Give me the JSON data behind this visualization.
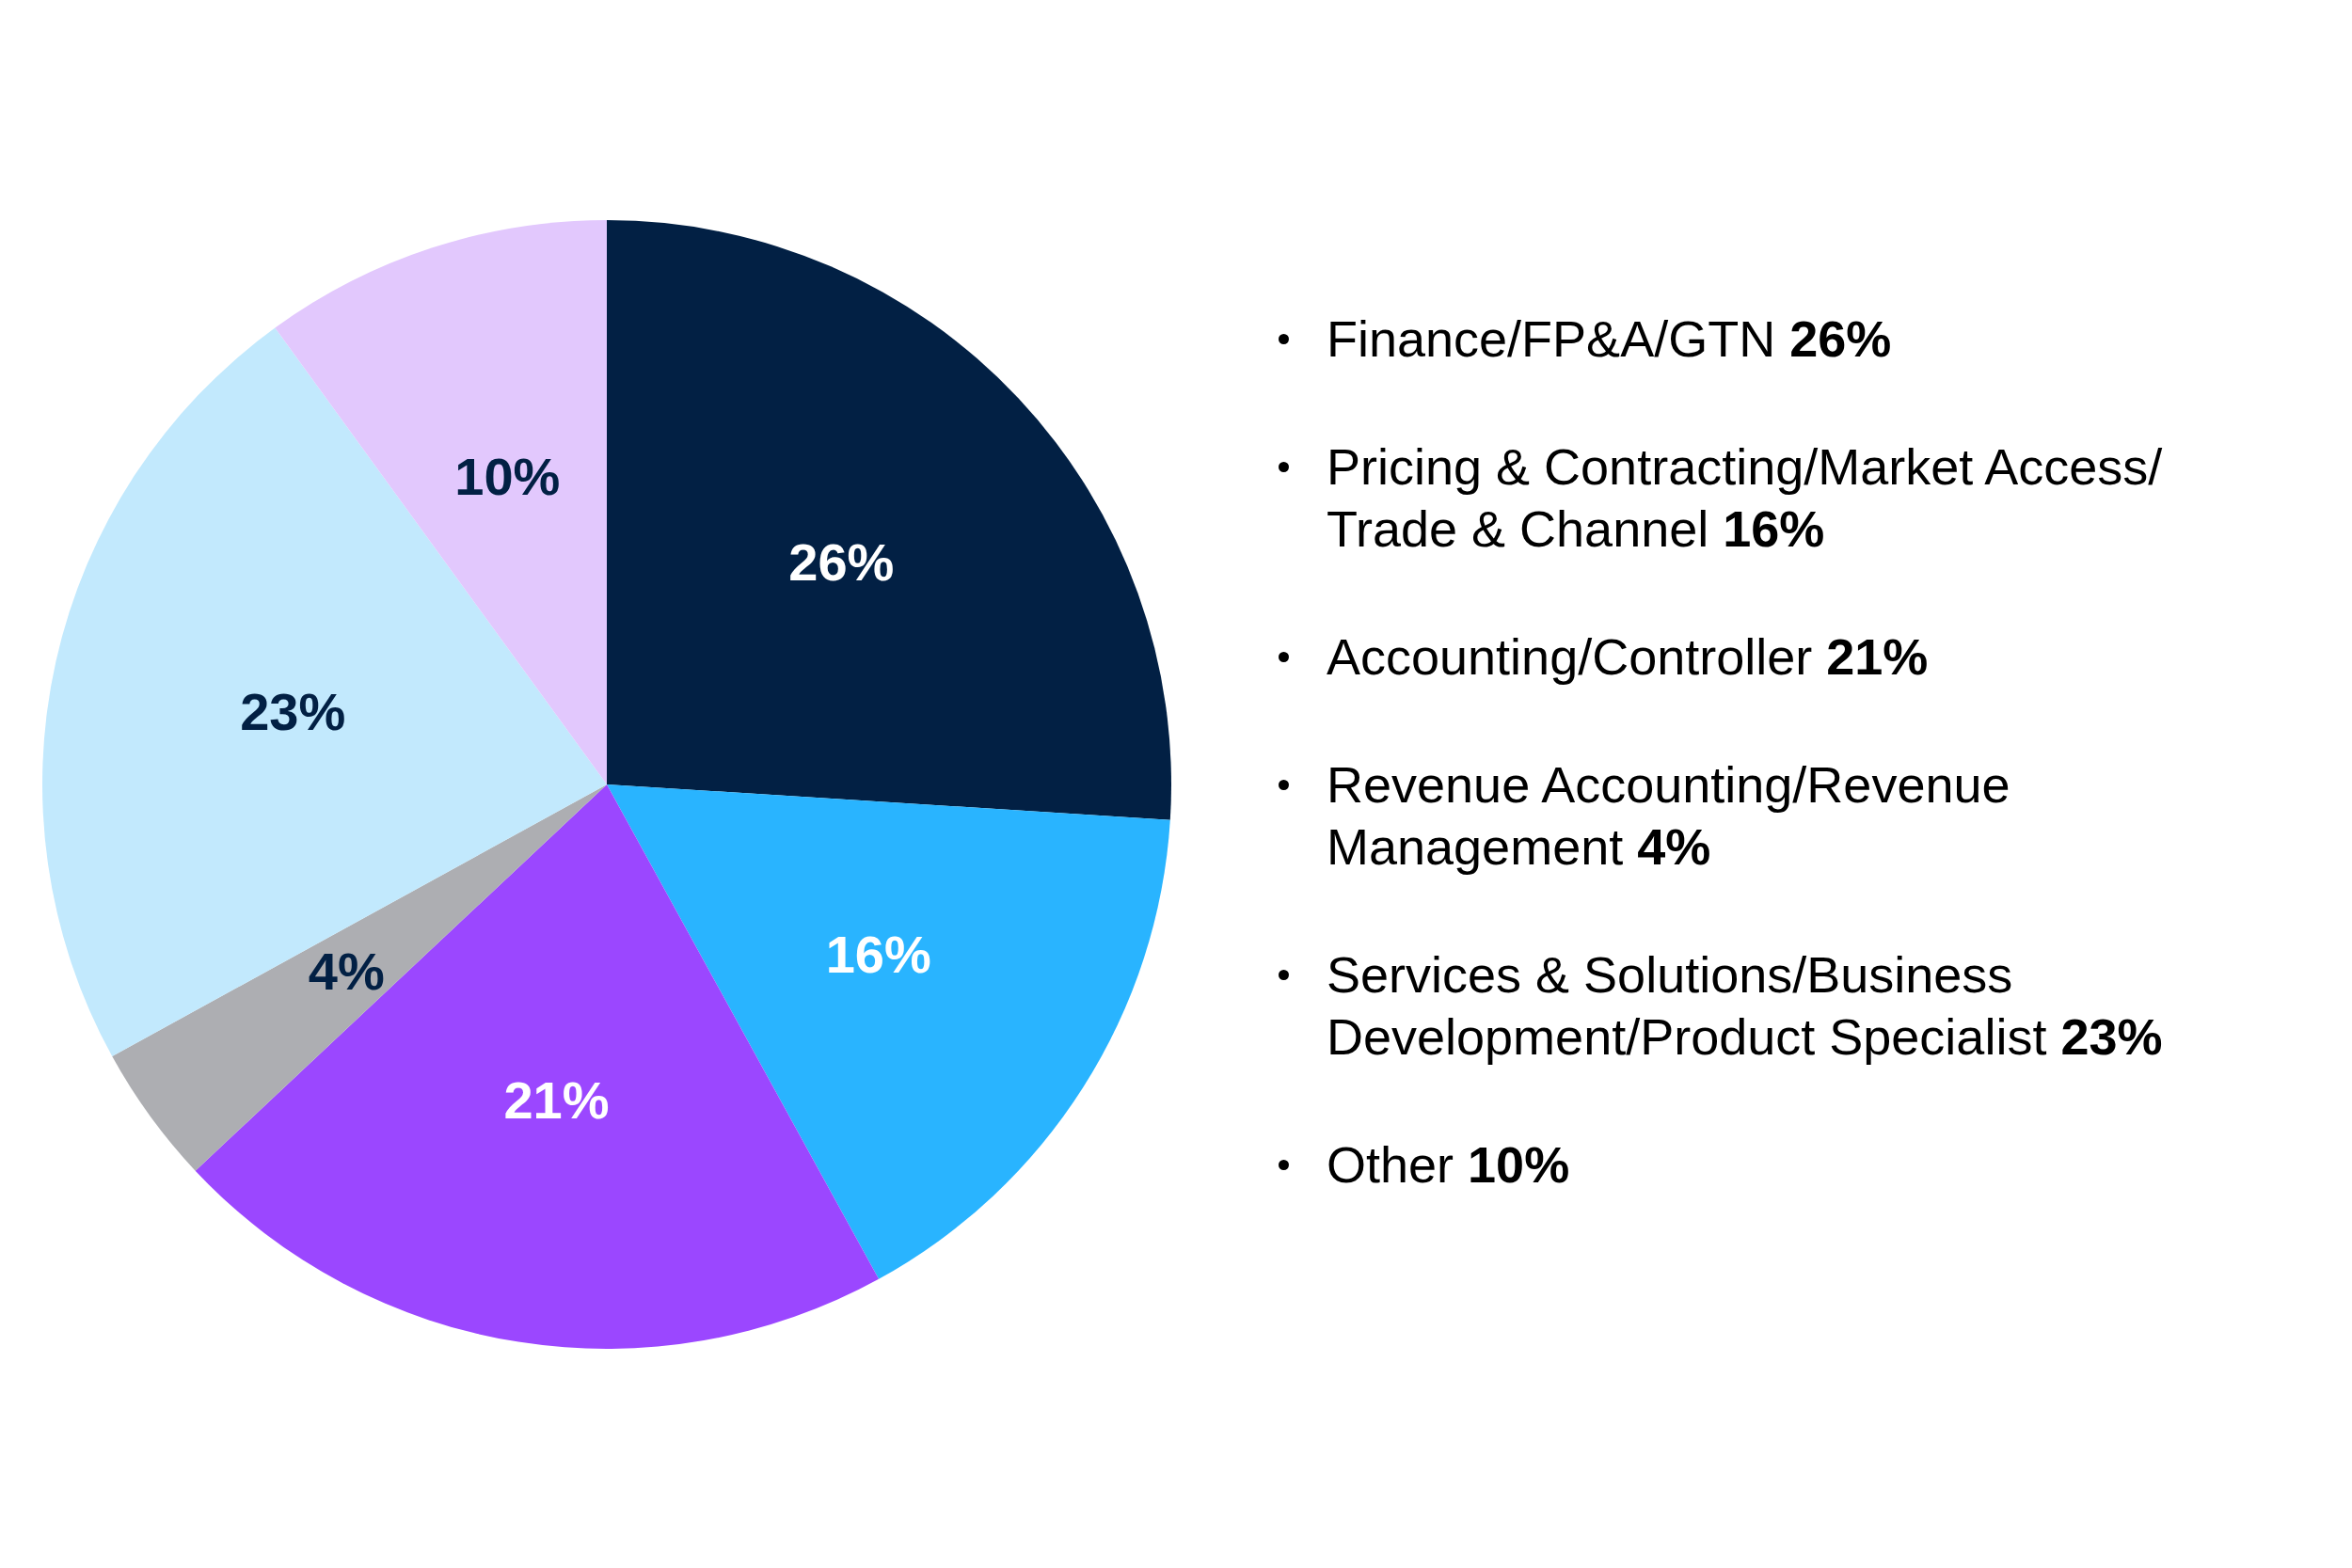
{
  "chart_data": {
    "type": "pie",
    "categories": [
      null,
      null,
      null,
      null,
      null,
      null
    ],
    "values": [
      26,
      16,
      21,
      4,
      23,
      10
    ],
    "value_labels": [
      "26%",
      "16%",
      "21%",
      "4%",
      "23%",
      "10%"
    ],
    "colors": [
      "#022044",
      "#29b4ff",
      "#9b47ff",
      "#adaeb2",
      "#c2e9fd",
      "#e2c8fd"
    ],
    "annotations": [
      "Finance/FP&A/GTN 26%",
      "Pricing & Contracting/Market Access/Trade & Channel 16%",
      "Accounting/Controller 21%",
      "Revenue Accounting/Revenue Management 4%",
      "Services & Solutions/Business Development/Product Specialist 23%",
      "Other 10%"
    ]
  }
}
